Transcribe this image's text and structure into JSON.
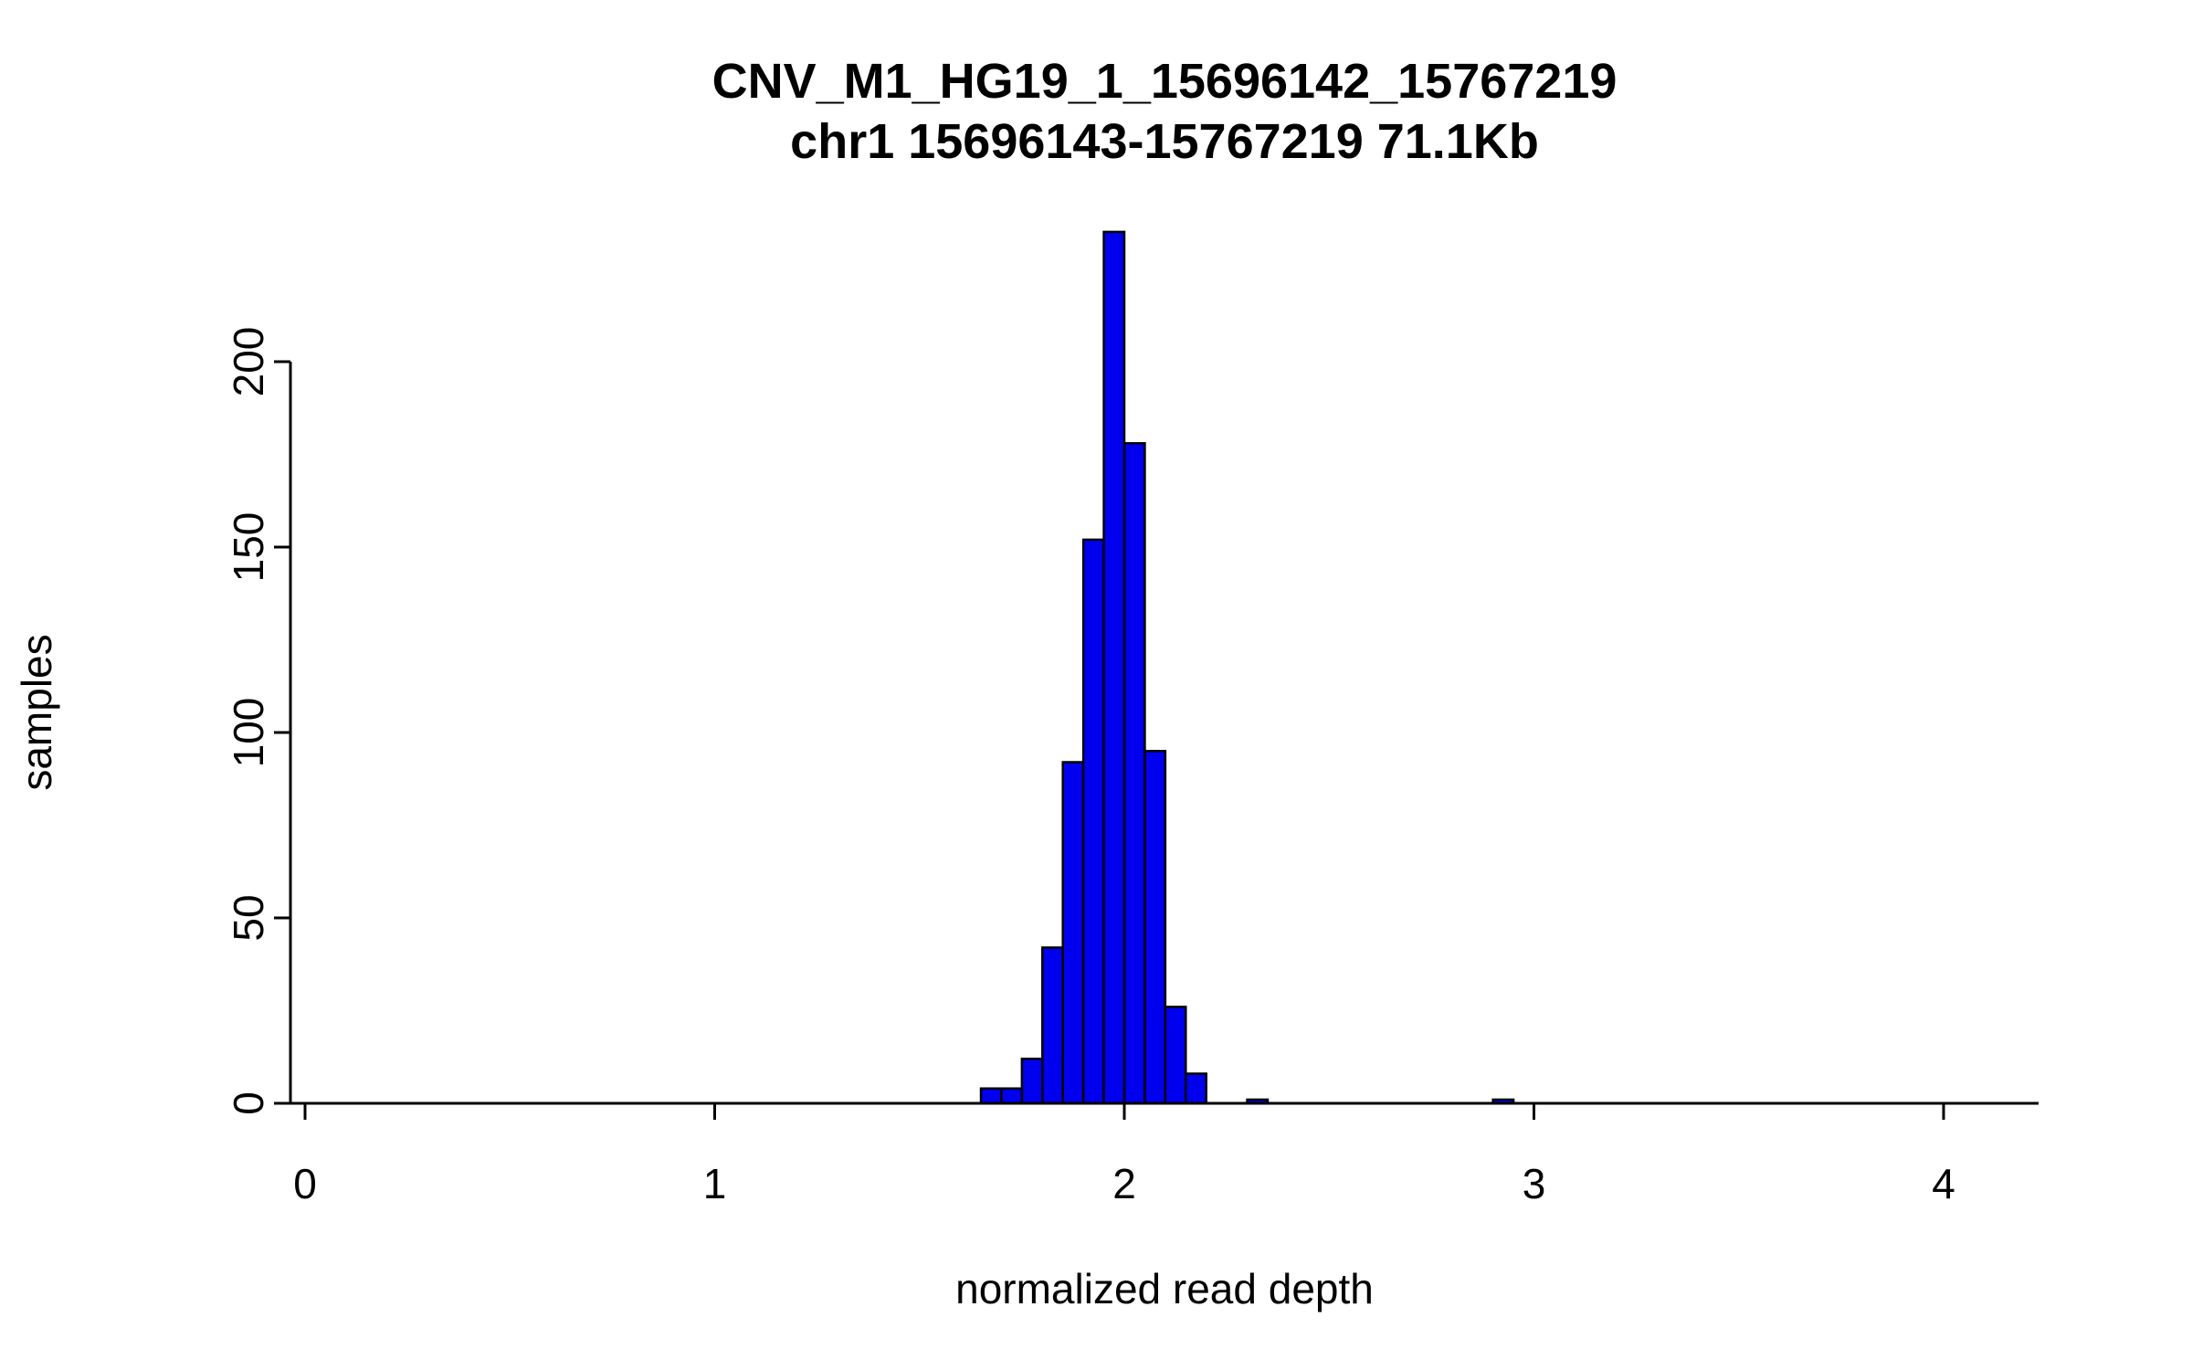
{
  "page": {
    "background": "#ffffff"
  },
  "chart_data": {
    "type": "bar",
    "title": "CNV_M1_HG19_1_15696142_15767219",
    "subtitle": "chr1 15696143-15767219 71.1Kb",
    "xlabel": "normalized read depth",
    "ylabel": "samples",
    "bin_start": 1.65,
    "bin_width": 0.05,
    "counts": [
      4,
      4,
      12,
      42,
      92,
      152,
      235,
      178,
      95,
      26,
      8,
      0,
      0,
      1,
      0,
      0,
      0,
      0,
      0,
      0,
      0,
      0,
      0,
      0,
      0,
      1
    ],
    "x_ticks": [
      0,
      1,
      2,
      3,
      4
    ],
    "y_ticks": [
      0,
      50,
      100,
      150,
      200
    ],
    "xlim": [
      0,
      4.2
    ],
    "ylim": [
      0,
      236
    ],
    "grid": false,
    "legend": "none",
    "bar_fill": "#0000EE",
    "bar_stroke": "#000000",
    "axis_color": "#000000"
  }
}
